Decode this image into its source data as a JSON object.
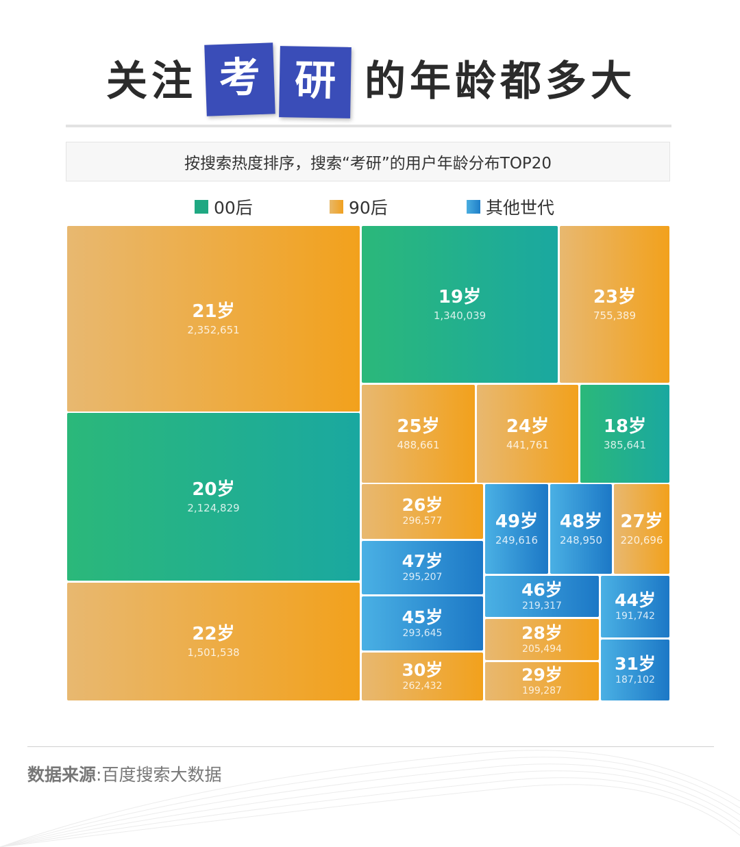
{
  "title": {
    "part1": "关注",
    "box1": "考",
    "box2": "研",
    "part2": "的年龄都多大"
  },
  "subtitle": "按搜索热度排序，搜索“考研”的用户年龄分布TOP20",
  "legend": [
    {
      "label": "00后",
      "color": "#1fa882"
    },
    {
      "label": "90后",
      "color": "#f0a830"
    },
    {
      "label": "其他世代",
      "color": "#2f8fd8"
    }
  ],
  "chart_data": {
    "type": "treemap",
    "series": [
      {
        "label": "21岁",
        "value": 2352651,
        "group": "90后"
      },
      {
        "label": "20岁",
        "value": 2124829,
        "group": "00后"
      },
      {
        "label": "22岁",
        "value": 1501538,
        "group": "90后"
      },
      {
        "label": "19岁",
        "value": 1340039,
        "group": "00后"
      },
      {
        "label": "23岁",
        "value": 755389,
        "group": "90后"
      },
      {
        "label": "25岁",
        "value": 488661,
        "group": "90后"
      },
      {
        "label": "24岁",
        "value": 441761,
        "group": "90后"
      },
      {
        "label": "18岁",
        "value": 385641,
        "group": "00后"
      },
      {
        "label": "26岁",
        "value": 296577,
        "group": "90后"
      },
      {
        "label": "47岁",
        "value": 295207,
        "group": "其他世代"
      },
      {
        "label": "45岁",
        "value": 293645,
        "group": "其他世代"
      },
      {
        "label": "30岁",
        "value": 262432,
        "group": "90后"
      },
      {
        "label": "49岁",
        "value": 249616,
        "group": "其他世代"
      },
      {
        "label": "48岁",
        "value": 248950,
        "group": "其他世代"
      },
      {
        "label": "27岁",
        "value": 220696,
        "group": "90后"
      },
      {
        "label": "46岁",
        "value": 219317,
        "group": "其他世代"
      },
      {
        "label": "28岁",
        "value": 205494,
        "group": "90后"
      },
      {
        "label": "29岁",
        "value": 199287,
        "group": "90后"
      },
      {
        "label": "44岁",
        "value": 191742,
        "group": "其他世代"
      },
      {
        "label": "31岁",
        "value": 187102,
        "group": "其他世代"
      }
    ]
  },
  "source": {
    "label": "数据来源",
    "separator": ":",
    "text": "百度搜索大数据"
  }
}
